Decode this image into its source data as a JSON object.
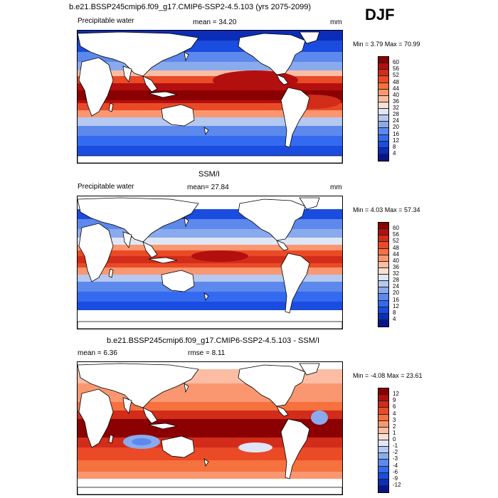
{
  "season": "DJF",
  "panels": [
    {
      "title": "b.e21.BSSP245cmip6.f09_g17.CMIP6-SSP2-4.5.103 (yrs 2075-2099)",
      "variable": "Precipitable water",
      "stat1": "mean =  34.20",
      "units": "mm",
      "minmax": "Min =   3.79 Max =  70.99",
      "levels": [
        "60",
        "56",
        "52",
        "48",
        "44",
        "40",
        "36",
        "32",
        "28",
        "24",
        "20",
        "16",
        "12",
        "8",
        "4"
      ],
      "colors": [
        "#8b0000",
        "#b40f0f",
        "#d22c1a",
        "#ea4a26",
        "#f5713e",
        "#fa9770",
        "#fbbda3",
        "#fbe0d2",
        "#dfe6f5",
        "#b5c8f0",
        "#8aaaee",
        "#5d89ec",
        "#346af0",
        "#1b4ce0",
        "#0c2db8",
        "#06168a"
      ]
    },
    {
      "title": "SSM/I",
      "variable": "Precipitable water",
      "stat1": "mean=  27.84",
      "units": "mm",
      "minmax": "Min =   4.03 Max =  57.34",
      "levels": [
        "60",
        "56",
        "52",
        "48",
        "44",
        "40",
        "36",
        "32",
        "28",
        "24",
        "20",
        "16",
        "12",
        "8",
        "4"
      ],
      "colors": [
        "#8b0000",
        "#b40f0f",
        "#d22c1a",
        "#ea4a26",
        "#f5713e",
        "#fa9770",
        "#fbbda3",
        "#fbe0d2",
        "#dfe6f5",
        "#b5c8f0",
        "#8aaaee",
        "#5d89ec",
        "#346af0",
        "#1b4ce0",
        "#0c2db8",
        "#06168a"
      ]
    },
    {
      "title": "b.e21.BSSP245cmip6.f09_g17.CMIP6-SSP2-4.5.103 - SSM/I",
      "stat1": "mean =   6.36",
      "stat2": "rmse =   8.11",
      "minmax": "Min =  -4.08 Max =  23.61",
      "levels": [
        "12",
        "9",
        "6",
        "4",
        "3",
        "2",
        "1",
        "0",
        "-1",
        "-2",
        "-3",
        "-4",
        "-6",
        "-9",
        "-12"
      ],
      "colors": [
        "#8b0000",
        "#b40f0f",
        "#d22c1a",
        "#ea4a26",
        "#f5713e",
        "#fa9770",
        "#fbbda3",
        "#fbe0d2",
        "#dfe6f5",
        "#b5c8f0",
        "#8aaaee",
        "#5d89ec",
        "#346af0",
        "#1b4ce0",
        "#0c2db8",
        "#06168a"
      ]
    }
  ],
  "chart_data": [
    {
      "type": "heatmap",
      "title": "b.e21.BSSP245cmip6.f09_g17.CMIP6-SSP2-4.5.103 (yrs 2075-2099)",
      "variable": "Precipitable water",
      "units": "mm",
      "mean": 34.2,
      "min": 3.79,
      "max": 70.99,
      "contour_levels": [
        4,
        8,
        12,
        16,
        20,
        24,
        28,
        32,
        36,
        40,
        44,
        48,
        52,
        56,
        60
      ]
    },
    {
      "type": "heatmap",
      "title": "SSM/I",
      "variable": "Precipitable water",
      "units": "mm",
      "mean": 27.84,
      "min": 4.03,
      "max": 57.34,
      "contour_levels": [
        4,
        8,
        12,
        16,
        20,
        24,
        28,
        32,
        36,
        40,
        44,
        48,
        52,
        56,
        60
      ]
    },
    {
      "type": "heatmap",
      "title": "b.e21.BSSP245cmip6.f09_g17.CMIP6-SSP2-4.5.103 - SSM/I",
      "mean": 6.36,
      "rmse": 8.11,
      "min": -4.08,
      "max": 23.61,
      "contour_levels": [
        -12,
        -9,
        -6,
        -4,
        -3,
        -2,
        -1,
        0,
        1,
        2,
        3,
        4,
        6,
        9,
        12
      ]
    }
  ]
}
